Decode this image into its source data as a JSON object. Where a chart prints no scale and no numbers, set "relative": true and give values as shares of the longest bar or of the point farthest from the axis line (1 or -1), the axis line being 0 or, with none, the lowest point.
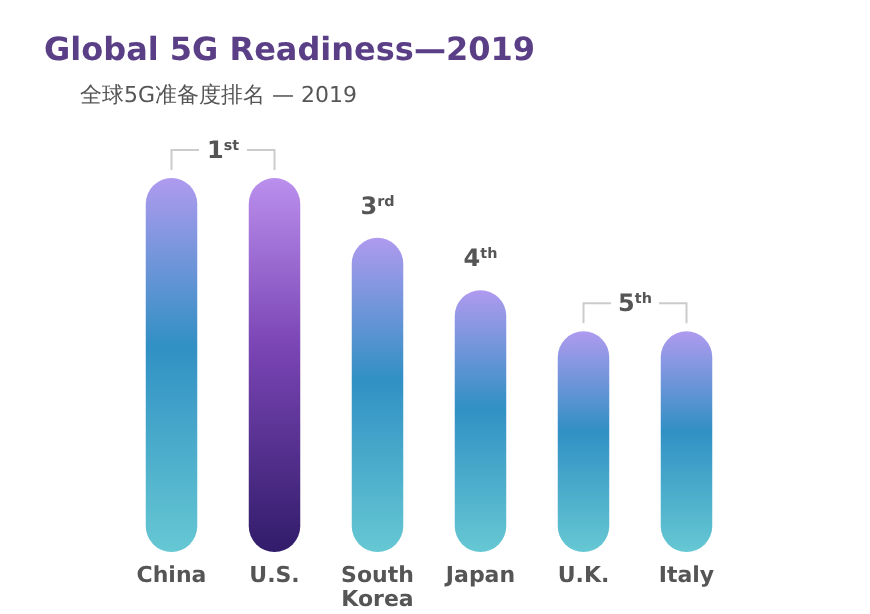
{
  "chart_data": {
    "type": "bar",
    "title": "Global 5G Readiness—2019",
    "subtitle": "全球5G准备度排名 — 2019",
    "relative": true,
    "categories": [
      "China",
      "U.S.",
      "South Korea",
      "Japan",
      "U.K.",
      "Italy"
    ],
    "values": [
      1,
      1,
      0.84,
      0.7,
      0.59,
      0.59
    ],
    "colors": [
      "#3190c4",
      "#7a45b4",
      "#3190c4",
      "#3190c4",
      "#3190c4",
      "#3190c4"
    ],
    "annotations": [
      {
        "text": "1$^{st}$",
        "x": "China",
        "y": 1
      },
      {
        "text": "3$^{rd}$",
        "x": "South Korea",
        "y": 0.84
      },
      {
        "text": "4$^{th}$",
        "x": "Japan",
        "y": 0.7
      },
      {
        "text": "5$^{th}$",
        "x": "U.K.",
        "y": 0.59
      }
    ]
  }
}
